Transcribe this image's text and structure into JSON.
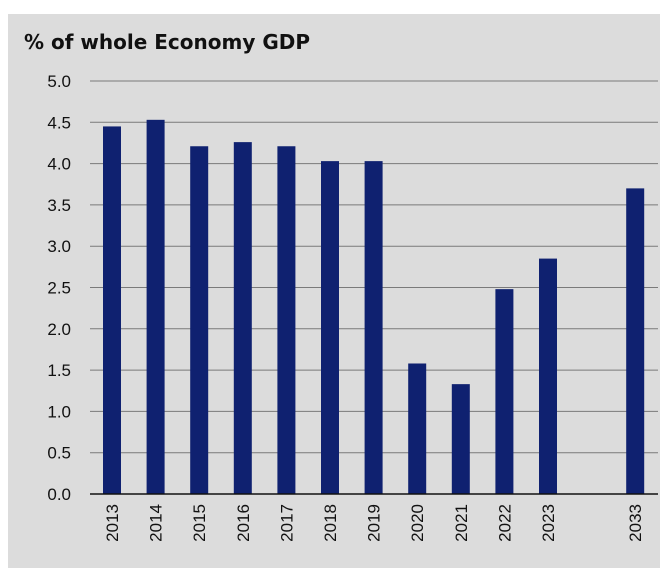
{
  "chart_data": {
    "type": "bar",
    "title": "% of whole Economy GDP",
    "categories": [
      "2013",
      "2014",
      "2015",
      "2016",
      "2017",
      "2018",
      "2019",
      "2020",
      "2021",
      "2022",
      "2023",
      "2033"
    ],
    "values": [
      4.45,
      4.53,
      4.21,
      4.26,
      4.21,
      4.03,
      4.03,
      1.58,
      1.33,
      2.48,
      2.85,
      3.7
    ],
    "category_slots": [
      0,
      1,
      2,
      3,
      4,
      5,
      6,
      7,
      8,
      9,
      10,
      12
    ],
    "ylim": [
      0,
      5
    ],
    "yticks": [
      "0.0",
      "0.5",
      "1.0",
      "1.5",
      "2.0",
      "2.5",
      "3.0",
      "3.5",
      "4.0",
      "4.5",
      "5.0"
    ],
    "xlabel": "",
    "ylabel": "",
    "grid": true,
    "bar_color": "#0f2170",
    "background_color": "#dcdcdc",
    "gridline_color": "#7a7a7a"
  }
}
